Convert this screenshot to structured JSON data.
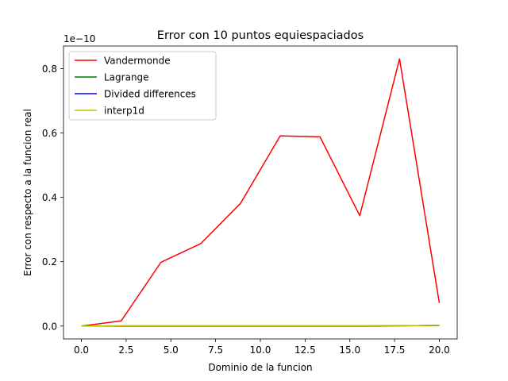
{
  "chart_data": {
    "type": "line",
    "title": "Error con 10 puntos equiespaciados",
    "xlabel": "Dominio de la funcion",
    "ylabel": "Error con respecto a la funcion real",
    "y_offset_label": "1e−10",
    "y_scale_factor": 1e-10,
    "xlim": [
      -1.0,
      21.0
    ],
    "ylim": [
      -0.04,
      0.87
    ],
    "x_ticks": [
      0.0,
      2.5,
      5.0,
      7.5,
      10.0,
      12.5,
      15.0,
      17.5,
      20.0
    ],
    "x_tick_labels": [
      "0.0",
      "2.5",
      "5.0",
      "7.5",
      "10.0",
      "12.5",
      "15.0",
      "17.5",
      "20.0"
    ],
    "y_ticks": [
      0.0,
      0.2,
      0.4,
      0.6,
      0.8
    ],
    "y_tick_labels": [
      "0.0",
      "0.2",
      "0.4",
      "0.6",
      "0.8"
    ],
    "grid": false,
    "legend_position": "top-left",
    "x": [
      0.0,
      2.222,
      4.444,
      6.667,
      8.889,
      11.111,
      13.333,
      15.556,
      17.778,
      20.0
    ],
    "series": [
      {
        "name": "Vandermonde",
        "color": "#ff0000",
        "values": [
          0.0,
          0.016,
          0.198,
          0.256,
          0.381,
          0.591,
          0.588,
          0.343,
          0.83,
          0.072
        ]
      },
      {
        "name": "Lagrange",
        "color": "#008000",
        "values": [
          0.0,
          0.0,
          0.0,
          0.0,
          0.0,
          0.0,
          0.0,
          0.0,
          0.001,
          0.002
        ]
      },
      {
        "name": "Divided differences",
        "color": "#0000ff",
        "values": [
          0.0,
          0.0,
          0.0,
          0.0,
          0.0,
          0.0,
          0.0,
          0.0,
          0.001,
          0.002
        ]
      },
      {
        "name": "interp1d",
        "color": "#bfbf00",
        "values": [
          0.0,
          0.001,
          0.001,
          0.001,
          0.001,
          0.001,
          0.001,
          0.001,
          0.001,
          0.002
        ]
      }
    ]
  }
}
